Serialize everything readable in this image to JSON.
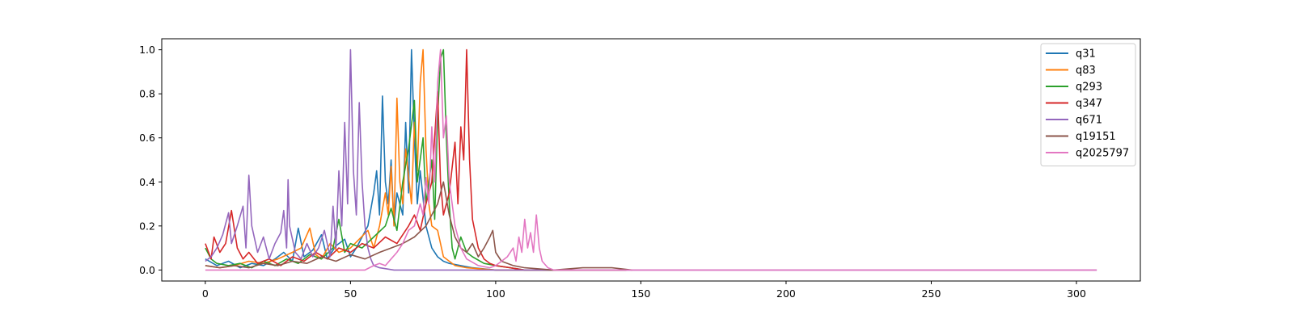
{
  "chart_data": {
    "type": "line",
    "title": "",
    "xlabel": "",
    "ylabel": "",
    "xlim": [
      -15,
      322
    ],
    "ylim": [
      -0.05,
      1.05
    ],
    "xticks": [
      0,
      50,
      100,
      150,
      200,
      250,
      300
    ],
    "yticks": [
      0.0,
      0.2,
      0.4,
      0.6,
      0.8,
      1.0
    ],
    "xtick_labels": [
      "0",
      "50",
      "100",
      "150",
      "200",
      "250",
      "300"
    ],
    "ytick_labels": [
      "0.0",
      "0.2",
      "0.4",
      "0.6",
      "0.8",
      "1.0"
    ],
    "grid": false,
    "legend_position": "top-right",
    "series": [
      {
        "name": "q31",
        "color": "#1f77b4",
        "points": [
          [
            0,
            0.05
          ],
          [
            4,
            0.02
          ],
          [
            8,
            0.04
          ],
          [
            12,
            0.01
          ],
          [
            16,
            0.03
          ],
          [
            20,
            0.02
          ],
          [
            24,
            0.05
          ],
          [
            27,
            0.08
          ],
          [
            30,
            0.04
          ],
          [
            32,
            0.19
          ],
          [
            34,
            0.06
          ],
          [
            37,
            0.09
          ],
          [
            40,
            0.16
          ],
          [
            42,
            0.05
          ],
          [
            45,
            0.11
          ],
          [
            48,
            0.14
          ],
          [
            50,
            0.06
          ],
          [
            52,
            0.1
          ],
          [
            54,
            0.15
          ],
          [
            56,
            0.2
          ],
          [
            58,
            0.35
          ],
          [
            59,
            0.45
          ],
          [
            60,
            0.25
          ],
          [
            61,
            0.79
          ],
          [
            62,
            0.4
          ],
          [
            63,
            0.3
          ],
          [
            64,
            0.5
          ],
          [
            65,
            0.2
          ],
          [
            66,
            0.35
          ],
          [
            68,
            0.25
          ],
          [
            69,
            0.67
          ],
          [
            70,
            0.35
          ],
          [
            71,
            1.0
          ],
          [
            72,
            0.6
          ],
          [
            73,
            0.3
          ],
          [
            74,
            0.45
          ],
          [
            76,
            0.2
          ],
          [
            78,
            0.1
          ],
          [
            80,
            0.06
          ],
          [
            82,
            0.04
          ],
          [
            84,
            0.03
          ],
          [
            88,
            0.02
          ],
          [
            92,
            0.01
          ],
          [
            100,
            0.0
          ],
          [
            120,
            0.0
          ],
          [
            145,
            0.0
          ]
        ]
      },
      {
        "name": "q83",
        "color": "#ff7f0e",
        "points": [
          [
            0,
            0.02
          ],
          [
            5,
            0.01
          ],
          [
            10,
            0.02
          ],
          [
            15,
            0.04
          ],
          [
            20,
            0.03
          ],
          [
            25,
            0.05
          ],
          [
            30,
            0.08
          ],
          [
            33,
            0.1
          ],
          [
            36,
            0.19
          ],
          [
            38,
            0.07
          ],
          [
            40,
            0.05
          ],
          [
            43,
            0.12
          ],
          [
            46,
            0.08
          ],
          [
            50,
            0.1
          ],
          [
            53,
            0.14
          ],
          [
            56,
            0.18
          ],
          [
            58,
            0.1
          ],
          [
            60,
            0.2
          ],
          [
            62,
            0.35
          ],
          [
            63,
            0.25
          ],
          [
            64,
            0.47
          ],
          [
            65,
            0.2
          ],
          [
            66,
            0.78
          ],
          [
            67,
            0.4
          ],
          [
            68,
            0.3
          ],
          [
            69,
            0.55
          ],
          [
            71,
            0.3
          ],
          [
            72,
            0.67
          ],
          [
            73,
            0.45
          ],
          [
            74,
            0.85
          ],
          [
            75,
            1.0
          ],
          [
            76,
            0.55
          ],
          [
            77,
            0.3
          ],
          [
            78,
            0.2
          ],
          [
            80,
            0.18
          ],
          [
            82,
            0.06
          ],
          [
            84,
            0.04
          ],
          [
            86,
            0.02
          ],
          [
            90,
            0.01
          ],
          [
            100,
            0.0
          ],
          [
            120,
            0.0
          ],
          [
            145,
            0.0
          ]
        ]
      },
      {
        "name": "q293",
        "color": "#2ca02c",
        "points": [
          [
            0,
            0.1
          ],
          [
            2,
            0.05
          ],
          [
            4,
            0.03
          ],
          [
            8,
            0.02
          ],
          [
            12,
            0.03
          ],
          [
            16,
            0.01
          ],
          [
            20,
            0.04
          ],
          [
            24,
            0.02
          ],
          [
            28,
            0.05
          ],
          [
            32,
            0.03
          ],
          [
            36,
            0.07
          ],
          [
            40,
            0.05
          ],
          [
            44,
            0.1
          ],
          [
            46,
            0.23
          ],
          [
            48,
            0.08
          ],
          [
            50,
            0.12
          ],
          [
            54,
            0.1
          ],
          [
            58,
            0.15
          ],
          [
            62,
            0.2
          ],
          [
            64,
            0.28
          ],
          [
            66,
            0.18
          ],
          [
            68,
            0.4
          ],
          [
            70,
            0.55
          ],
          [
            72,
            0.77
          ],
          [
            73,
            0.4
          ],
          [
            75,
            0.6
          ],
          [
            76,
            0.3
          ],
          [
            78,
            0.5
          ],
          [
            79,
            0.23
          ],
          [
            80,
            0.7
          ],
          [
            81,
            0.96
          ],
          [
            82,
            1.0
          ],
          [
            83,
            0.6
          ],
          [
            84,
            0.3
          ],
          [
            85,
            0.1
          ],
          [
            86,
            0.05
          ],
          [
            88,
            0.15
          ],
          [
            90,
            0.08
          ],
          [
            92,
            0.06
          ],
          [
            96,
            0.03
          ],
          [
            100,
            0.02
          ],
          [
            105,
            0.01
          ],
          [
            110,
            0.0
          ],
          [
            145,
            0.0
          ]
        ]
      },
      {
        "name": "q347",
        "color": "#d62728",
        "points": [
          [
            0,
            0.12
          ],
          [
            2,
            0.05
          ],
          [
            3,
            0.15
          ],
          [
            5,
            0.08
          ],
          [
            7,
            0.12
          ],
          [
            9,
            0.27
          ],
          [
            11,
            0.1
          ],
          [
            13,
            0.05
          ],
          [
            15,
            0.08
          ],
          [
            18,
            0.03
          ],
          [
            22,
            0.05
          ],
          [
            26,
            0.02
          ],
          [
            30,
            0.06
          ],
          [
            34,
            0.04
          ],
          [
            38,
            0.08
          ],
          [
            42,
            0.05
          ],
          [
            46,
            0.1
          ],
          [
            50,
            0.08
          ],
          [
            54,
            0.12
          ],
          [
            58,
            0.1
          ],
          [
            62,
            0.15
          ],
          [
            66,
            0.12
          ],
          [
            70,
            0.2
          ],
          [
            72,
            0.25
          ],
          [
            74,
            0.18
          ],
          [
            76,
            0.3
          ],
          [
            78,
            0.4
          ],
          [
            80,
            0.81
          ],
          [
            81,
            0.4
          ],
          [
            82,
            0.25
          ],
          [
            84,
            0.35
          ],
          [
            86,
            0.58
          ],
          [
            87,
            0.3
          ],
          [
            88,
            0.65
          ],
          [
            89,
            0.5
          ],
          [
            90,
            1.0
          ],
          [
            91,
            0.5
          ],
          [
            92,
            0.23
          ],
          [
            94,
            0.1
          ],
          [
            96,
            0.05
          ],
          [
            98,
            0.03
          ],
          [
            100,
            0.02
          ],
          [
            105,
            0.01
          ],
          [
            110,
            0.0
          ],
          [
            145,
            0.0
          ]
        ]
      },
      {
        "name": "q671",
        "color": "#9467bd",
        "points": [
          [
            0,
            0.04
          ],
          [
            2,
            0.06
          ],
          [
            4,
            0.1
          ],
          [
            6,
            0.16
          ],
          [
            8,
            0.26
          ],
          [
            9,
            0.12
          ],
          [
            11,
            0.2
          ],
          [
            13,
            0.29
          ],
          [
            14,
            0.1
          ],
          [
            15,
            0.43
          ],
          [
            16,
            0.2
          ],
          [
            18,
            0.08
          ],
          [
            20,
            0.15
          ],
          [
            22,
            0.05
          ],
          [
            24,
            0.12
          ],
          [
            26,
            0.17
          ],
          [
            27,
            0.27
          ],
          [
            28,
            0.1
          ],
          [
            28.5,
            0.41
          ],
          [
            29,
            0.2
          ],
          [
            31,
            0.08
          ],
          [
            33,
            0.05
          ],
          [
            35,
            0.12
          ],
          [
            37,
            0.06
          ],
          [
            39,
            0.1
          ],
          [
            41,
            0.18
          ],
          [
            43,
            0.06
          ],
          [
            44,
            0.29
          ],
          [
            45,
            0.1
          ],
          [
            46,
            0.45
          ],
          [
            47,
            0.2
          ],
          [
            48,
            0.67
          ],
          [
            49,
            0.3
          ],
          [
            50,
            1.0
          ],
          [
            51,
            0.45
          ],
          [
            52,
            0.25
          ],
          [
            53,
            0.76
          ],
          [
            54,
            0.4
          ],
          [
            55,
            0.2
          ],
          [
            56,
            0.1
          ],
          [
            57,
            0.05
          ],
          [
            58,
            0.02
          ],
          [
            60,
            0.01
          ],
          [
            65,
            0.0
          ],
          [
            100,
            0.0
          ],
          [
            150,
            0.0
          ],
          [
            307,
            0.0
          ]
        ]
      },
      {
        "name": "q19151",
        "color": "#8c564b",
        "points": [
          [
            0,
            0.02
          ],
          [
            5,
            0.01
          ],
          [
            10,
            0.02
          ],
          [
            15,
            0.01
          ],
          [
            20,
            0.03
          ],
          [
            25,
            0.02
          ],
          [
            30,
            0.04
          ],
          [
            35,
            0.03
          ],
          [
            40,
            0.06
          ],
          [
            45,
            0.04
          ],
          [
            50,
            0.07
          ],
          [
            55,
            0.05
          ],
          [
            60,
            0.08
          ],
          [
            64,
            0.1
          ],
          [
            68,
            0.12
          ],
          [
            72,
            0.15
          ],
          [
            76,
            0.2
          ],
          [
            80,
            0.3
          ],
          [
            82,
            0.4
          ],
          [
            84,
            0.25
          ],
          [
            86,
            0.15
          ],
          [
            88,
            0.1
          ],
          [
            90,
            0.08
          ],
          [
            92,
            0.12
          ],
          [
            94,
            0.06
          ],
          [
            96,
            0.1
          ],
          [
            98,
            0.15
          ],
          [
            99,
            0.18
          ],
          [
            100,
            0.08
          ],
          [
            102,
            0.04
          ],
          [
            106,
            0.02
          ],
          [
            110,
            0.01
          ],
          [
            120,
            0.0
          ],
          [
            130,
            0.01
          ],
          [
            140,
            0.01
          ],
          [
            147,
            0.0
          ]
        ]
      },
      {
        "name": "q2025797",
        "color": "#e377c2",
        "points": [
          [
            0,
            0.0
          ],
          [
            20,
            0.0
          ],
          [
            40,
            0.0
          ],
          [
            55,
            0.0
          ],
          [
            58,
            0.02
          ],
          [
            60,
            0.03
          ],
          [
            62,
            0.02
          ],
          [
            64,
            0.05
          ],
          [
            66,
            0.08
          ],
          [
            68,
            0.12
          ],
          [
            70,
            0.18
          ],
          [
            72,
            0.2
          ],
          [
            74,
            0.3
          ],
          [
            75,
            0.25
          ],
          [
            76,
            0.42
          ],
          [
            77,
            0.3
          ],
          [
            78,
            0.65
          ],
          [
            79,
            0.4
          ],
          [
            80,
            0.85
          ],
          [
            81,
            1.0
          ],
          [
            82,
            0.6
          ],
          [
            83,
            0.7
          ],
          [
            84,
            0.4
          ],
          [
            85,
            0.3
          ],
          [
            86,
            0.2
          ],
          [
            88,
            0.1
          ],
          [
            90,
            0.05
          ],
          [
            94,
            0.02
          ],
          [
            98,
            0.01
          ],
          [
            100,
            0.02
          ],
          [
            102,
            0.04
          ],
          [
            104,
            0.06
          ],
          [
            106,
            0.1
          ],
          [
            107,
            0.04
          ],
          [
            108,
            0.15
          ],
          [
            109,
            0.08
          ],
          [
            110,
            0.23
          ],
          [
            111,
            0.1
          ],
          [
            112,
            0.17
          ],
          [
            113,
            0.08
          ],
          [
            114,
            0.25
          ],
          [
            115,
            0.1
          ],
          [
            116,
            0.04
          ],
          [
            118,
            0.01
          ],
          [
            120,
            0.0
          ],
          [
            150,
            0.0
          ],
          [
            200,
            0.0
          ],
          [
            250,
            0.0
          ],
          [
            307,
            0.0
          ]
        ]
      }
    ]
  }
}
